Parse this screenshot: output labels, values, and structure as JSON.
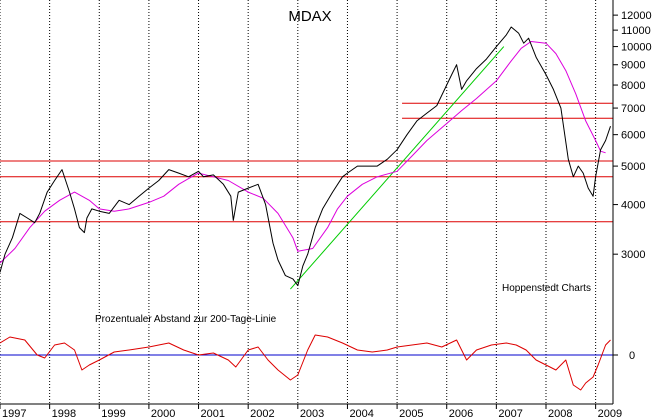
{
  "chart_data": [
    {
      "type": "line",
      "title": "MDAX",
      "credit": "Hoppenstedt Charts",
      "scale": "log",
      "ylim": [
        2300,
        12800
      ],
      "y_ticks": [
        12000,
        11000,
        10000,
        9000,
        8000,
        7000,
        6000,
        5000,
        4000,
        3000
      ],
      "y_tick_labels": [
        "12000",
        "11000",
        "10000",
        "9000",
        "8000",
        "7000",
        "6000",
        "5000",
        "4000",
        "3000"
      ],
      "xlim": [
        1997.0,
        2009.35
      ],
      "x_ticks": [
        1997,
        1998,
        1999,
        2000,
        2001,
        2002,
        2003,
        2004,
        2005,
        2006,
        2007,
        2008,
        2009
      ],
      "x_tick_labels": [
        "1997",
        "1998",
        "1999",
        "2000",
        "2001",
        "2002",
        "2003",
        "2004",
        "2005",
        "2006",
        "2007",
        "2008",
        "2009"
      ],
      "grid": "vertical dotted at each year",
      "series": [
        {
          "name": "MDAX",
          "color": "#000000",
          "x": [
            1997.0,
            1997.1,
            1997.25,
            1997.4,
            1997.55,
            1997.7,
            1997.8,
            1997.95,
            1998.1,
            1998.25,
            1998.4,
            1998.5,
            1998.6,
            1998.7,
            1998.75,
            1998.85,
            1999.0,
            1999.2,
            1999.4,
            1999.6,
            1999.8,
            2000.0,
            2000.2,
            2000.4,
            2000.6,
            2000.8,
            2001.0,
            2001.1,
            2001.3,
            2001.5,
            2001.65,
            2001.7,
            2001.8,
            2002.0,
            2002.2,
            2002.35,
            2002.5,
            2002.6,
            2002.75,
            2002.9,
            2003.0,
            2003.1,
            2003.2,
            2003.35,
            2003.5,
            2003.7,
            2003.9,
            2004.0,
            2004.2,
            2004.4,
            2004.6,
            2004.8,
            2005.0,
            2005.2,
            2005.4,
            2005.6,
            2005.8,
            2006.0,
            2006.1,
            2006.2,
            2006.3,
            2006.4,
            2006.6,
            2006.8,
            2007.0,
            2007.2,
            2007.3,
            2007.45,
            2007.55,
            2007.65,
            2007.8,
            2008.0,
            2008.15,
            2008.3,
            2008.45,
            2008.55,
            2008.65,
            2008.75,
            2008.85,
            2008.95,
            2009.0,
            2009.1,
            2009.2,
            2009.3
          ],
          "y": [
            2700,
            3000,
            3300,
            3800,
            3700,
            3600,
            3800,
            4300,
            4600,
            4900,
            4300,
            3900,
            3500,
            3400,
            3700,
            3900,
            3850,
            3800,
            4100,
            4000,
            4200,
            4400,
            4600,
            4900,
            4800,
            4700,
            4850,
            4700,
            4750,
            4500,
            4200,
            3650,
            4300,
            4400,
            4500,
            4000,
            3200,
            2900,
            2650,
            2600,
            2500,
            2800,
            3000,
            3500,
            3900,
            4300,
            4700,
            4800,
            5000,
            5000,
            5000,
            5200,
            5500,
            6000,
            6500,
            6800,
            7100,
            8000,
            8500,
            9000,
            7800,
            8200,
            8800,
            9300,
            10000,
            10700,
            11200,
            10800,
            10200,
            10500,
            9400,
            8500,
            7800,
            7000,
            5200,
            4700,
            5000,
            4800,
            4400,
            4200,
            4700,
            5500,
            5800,
            6300
          ]
        },
        {
          "name": "200-Tage-Linie",
          "color": "#dd00dd",
          "x": [
            1997.0,
            1997.3,
            1997.6,
            1997.9,
            1998.2,
            1998.5,
            1998.8,
            1999.0,
            1999.3,
            1999.6,
            2000.0,
            2000.3,
            2000.6,
            2000.8,
            2001.0,
            2001.3,
            2001.6,
            2002.0,
            2002.3,
            2002.6,
            2002.9,
            2003.0,
            2003.3,
            2003.6,
            2003.8,
            2004.0,
            2004.3,
            2004.6,
            2005.0,
            2005.3,
            2005.6,
            2006.0,
            2006.3,
            2006.6,
            2007.0,
            2007.3,
            2007.5,
            2007.7,
            2008.0,
            2008.2,
            2008.4,
            2008.6,
            2008.8,
            2009.0,
            2009.1,
            2009.2
          ],
          "y": [
            2850,
            3100,
            3500,
            3850,
            4100,
            4300,
            4100,
            3900,
            3850,
            3900,
            4050,
            4200,
            4500,
            4650,
            4800,
            4700,
            4600,
            4300,
            4150,
            3800,
            3300,
            3050,
            3100,
            3500,
            3900,
            4200,
            4500,
            4700,
            4850,
            5300,
            5800,
            6400,
            6900,
            7400,
            8200,
            9200,
            9900,
            10300,
            10200,
            9600,
            8700,
            7600,
            6500,
            5800,
            5450,
            5400
          ]
        },
        {
          "name": "Trendlinie",
          "color": "#00cc00",
          "x": [
            2002.85,
            2007.15
          ],
          "y": [
            2450,
            10000
          ]
        }
      ],
      "support_lines": {
        "color": "#dd0000",
        "levels": [
          {
            "value": 3620,
            "from": 1997.0,
            "to": 2009.35
          },
          {
            "value": 4700,
            "from": 1997.0,
            "to": 2009.35
          },
          {
            "value": 5150,
            "from": 1997.0,
            "to": 2009.35
          },
          {
            "value": 6600,
            "from": 2005.1,
            "to": 2009.35
          },
          {
            "value": 7200,
            "from": 2005.1,
            "to": 2009.35
          }
        ]
      }
    },
    {
      "type": "line",
      "title": "Prozentualer Abstand zur 200-Tage-Linie",
      "ylim": [
        -45,
        45
      ],
      "y_ticks": [
        0
      ],
      "y_tick_labels": [
        "0"
      ],
      "zero_line_color": "#0000cc",
      "series": [
        {
          "name": "Abstand",
          "color": "#dd0000",
          "x": [
            1997.0,
            1997.2,
            1997.5,
            1997.75,
            1997.9,
            1998.1,
            1998.3,
            1998.5,
            1998.65,
            1998.8,
            1999.0,
            1999.3,
            1999.6,
            2000.0,
            2000.2,
            2000.4,
            2000.7,
            2001.0,
            2001.3,
            2001.6,
            2001.75,
            2002.0,
            2002.2,
            2002.4,
            2002.6,
            2002.85,
            2003.0,
            2003.2,
            2003.35,
            2003.6,
            2003.9,
            2004.2,
            2004.5,
            2004.8,
            2005.0,
            2005.3,
            2005.6,
            2005.9,
            2006.2,
            2006.4,
            2006.6,
            2006.9,
            2007.2,
            2007.4,
            2007.6,
            2007.8,
            2008.0,
            2008.2,
            2008.4,
            2008.55,
            2008.7,
            2008.8,
            2008.95,
            2009.05,
            2009.2,
            2009.3
          ],
          "y": [
            12,
            18,
            15,
            0,
            -3,
            10,
            12,
            5,
            -15,
            -10,
            -5,
            3,
            5,
            8,
            10,
            12,
            5,
            0,
            2,
            -5,
            -12,
            5,
            8,
            -5,
            -15,
            -25,
            -20,
            5,
            20,
            18,
            12,
            5,
            3,
            5,
            8,
            10,
            12,
            8,
            15,
            -5,
            5,
            10,
            12,
            10,
            5,
            -5,
            -10,
            -15,
            -5,
            -30,
            -35,
            -28,
            -22,
            -10,
            10,
            15
          ]
        }
      ]
    }
  ]
}
